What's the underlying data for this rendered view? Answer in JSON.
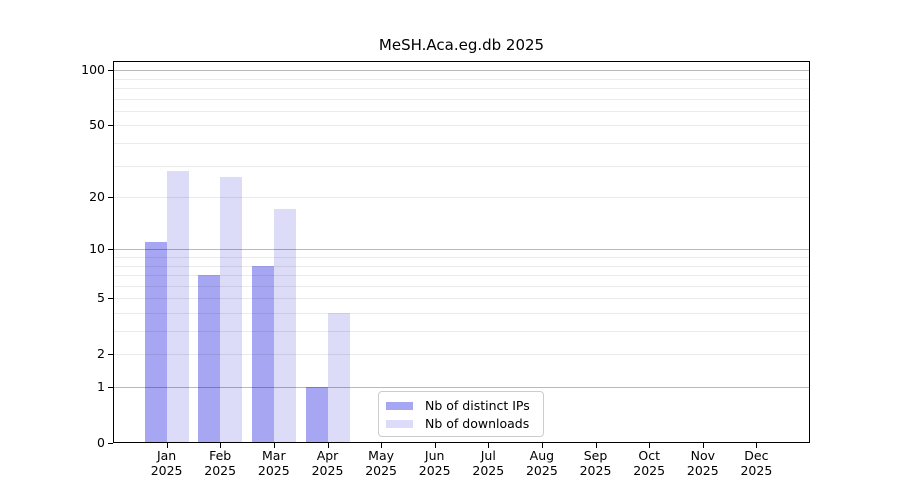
{
  "chart_data": {
    "type": "bar",
    "title": "MeSH.Aca.eg.db 2025",
    "year_label": "2025",
    "categories": [
      "Jan",
      "Feb",
      "Mar",
      "Apr",
      "May",
      "Jun",
      "Jul",
      "Aug",
      "Sep",
      "Oct",
      "Nov",
      "Dec"
    ],
    "series": [
      {
        "name": "Nb of distinct IPs",
        "color": "#a6a6f2",
        "values": [
          11,
          7,
          8,
          1,
          0,
          0,
          0,
          0,
          0,
          0,
          0,
          0
        ]
      },
      {
        "name": "Nb of downloads",
        "color": "#dcdcf9",
        "values": [
          28,
          26,
          17,
          4,
          0,
          0,
          0,
          0,
          0,
          0,
          0,
          0
        ]
      }
    ],
    "xlabel": "",
    "ylabel": "",
    "yscale": "log10(1+x)",
    "ylim": [
      0,
      112
    ],
    "ytick_values": [
      0,
      1,
      2,
      5,
      10,
      20,
      50,
      100
    ],
    "ytick_labels": [
      "0",
      "1",
      "2",
      "5",
      "10",
      "20",
      "50",
      "100"
    ],
    "major_gridlines": [
      1,
      10,
      100
    ],
    "minor_gridlines": [
      2,
      3,
      4,
      5,
      6,
      7,
      8,
      9,
      20,
      30,
      40,
      50,
      60,
      70,
      80,
      90
    ],
    "grid": "horizontal",
    "legend_position": "inside-bottom-center"
  }
}
